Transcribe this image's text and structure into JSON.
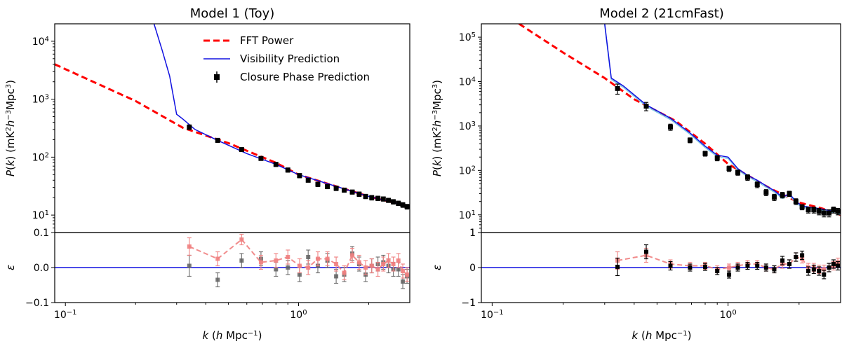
{
  "chart_data": [
    {
      "panel": "left",
      "title": "Model 1 (Toy)",
      "type": "line",
      "xscale": "log",
      "xlim": [
        0.09,
        3.0
      ],
      "xlabel": "k (h Mpc⁻¹)",
      "x_ticks": [
        {
          "v": 0.1,
          "b": "10",
          "e": "−1"
        },
        {
          "v": 1.0,
          "b": "10",
          "e": "0"
        }
      ],
      "top": {
        "ylabel": "P(k) (mK²h⁻³Mpc³)",
        "yscale": "log",
        "ylim": [
          5,
          20000
        ],
        "y_ticks": [
          {
            "v": 10,
            "b": "10",
            "e": "1"
          },
          {
            "v": 100,
            "b": "10",
            "e": "2"
          },
          {
            "v": 1000,
            "b": "10",
            "e": "3"
          },
          {
            "v": 10000,
            "b": "10",
            "e": "4"
          }
        ],
        "legend": {
          "placement": "upper-right",
          "entries": [
            "FFT Power",
            "Visibility Prediction",
            "Closure Phase Prediction"
          ]
        },
        "fft_power": {
          "x": [
            0.09,
            0.2,
            0.32,
            0.5,
            0.8,
            1.0,
            1.5,
            2.0,
            3.0
          ],
          "y": [
            4000,
            930,
            320,
            175,
            80,
            50,
            30,
            21,
            14
          ]
        },
        "visibility": {
          "x": [
            0.24,
            0.26,
            0.28,
            0.3,
            0.32,
            0.36,
            0.45,
            0.6,
            0.8,
            1.0,
            1.5,
            2.0,
            3.0
          ],
          "y": [
            20000,
            7000,
            2500,
            550,
            450,
            300,
            195,
            115,
            75,
            50,
            30,
            21,
            14
          ]
        },
        "closure": {
          "x": [
            0.34,
            0.45,
            0.57,
            0.69,
            0.8,
            0.9,
            1.01,
            1.1,
            1.21,
            1.33,
            1.45,
            1.57,
            1.7,
            1.82,
            1.94,
            2.06,
            2.19,
            2.31,
            2.43,
            2.55,
            2.68,
            2.8,
            2.92
          ],
          "y": [
            330,
            195,
            135,
            95,
            75,
            60,
            48,
            40,
            34,
            31,
            29,
            27,
            25,
            23,
            21,
            20,
            19.5,
            19,
            18,
            17,
            16,
            15,
            14
          ],
          "err": [
            30,
            15,
            10,
            7,
            6,
            5,
            4,
            3,
            3,
            2.5,
            2.5,
            2.2,
            2,
            2,
            1.8,
            1.8,
            1.7,
            1.6,
            1.5,
            1.5,
            1.4,
            1.4,
            1.3
          ]
        }
      },
      "bottom": {
        "ylabel": "ε",
        "ylim": [
          -0.1,
          0.1
        ],
        "y_ticks": [
          {
            "v": 0.1,
            "t": "0.1"
          },
          {
            "v": 0.0,
            "t": "0.0"
          },
          {
            "v": -0.1,
            "t": "−0.1"
          }
        ],
        "x": [
          0.34,
          0.45,
          0.57,
          0.69,
          0.8,
          0.9,
          1.01,
          1.1,
          1.21,
          1.33,
          1.45,
          1.57,
          1.7,
          1.82,
          1.94,
          2.06,
          2.19,
          2.31,
          2.43,
          2.55,
          2.68,
          2.8,
          2.92
        ],
        "black": [
          0.005,
          -0.035,
          0.02,
          0.025,
          -0.005,
          0.0,
          -0.02,
          0.03,
          0.005,
          0.02,
          -0.025,
          -0.02,
          0.04,
          0.01,
          -0.02,
          0.005,
          0.01,
          0.015,
          0.005,
          -0.005,
          -0.005,
          -0.04,
          -0.025
        ],
        "black_err": [
          0.03,
          0.02,
          0.02,
          0.02,
          0.02,
          0.02,
          0.02,
          0.02,
          0.02,
          0.02,
          0.02,
          0.02,
          0.02,
          0.02,
          0.02,
          0.02,
          0.02,
          0.02,
          0.02,
          0.02,
          0.02,
          0.02,
          0.02
        ],
        "red": [
          0.06,
          0.025,
          0.08,
          0.015,
          0.02,
          0.03,
          0.005,
          0.0,
          0.025,
          0.025,
          0.01,
          -0.015,
          0.035,
          0.015,
          0.0,
          0.005,
          -0.005,
          0.01,
          0.02,
          0.01,
          0.02,
          -0.01,
          -0.02
        ],
        "red_err": [
          0.025,
          0.02,
          0.015,
          0.02,
          0.02,
          0.02,
          0.02,
          0.02,
          0.02,
          0.02,
          0.02,
          0.02,
          0.02,
          0.02,
          0.02,
          0.02,
          0.02,
          0.02,
          0.02,
          0.02,
          0.02,
          0.02,
          0.02
        ]
      }
    },
    {
      "panel": "right",
      "title": "Model 2 (21cmFast)",
      "type": "line",
      "xscale": "log",
      "xlim": [
        0.09,
        3.0
      ],
      "xlabel": "k (h Mpc⁻¹)",
      "x_ticks": [
        {
          "v": 0.1,
          "b": "10",
          "e": "−1"
        },
        {
          "v": 1.0,
          "b": "10",
          "e": "0"
        }
      ],
      "top": {
        "ylabel": "P(k) (mK²h⁻³Mpc³)",
        "yscale": "log",
        "ylim": [
          4,
          200000
        ],
        "y_ticks": [
          {
            "v": 10,
            "b": "10",
            "e": "1"
          },
          {
            "v": 100,
            "b": "10",
            "e": "2"
          },
          {
            "v": 1000,
            "b": "10",
            "e": "3"
          },
          {
            "v": 10000,
            "b": "10",
            "e": "4"
          },
          {
            "v": 100000,
            "b": "10",
            "e": "5"
          }
        ],
        "fft_power": {
          "x": [
            0.13,
            0.2,
            0.3,
            0.4,
            0.6,
            0.8,
            1.0,
            1.5,
            2.0,
            2.5,
            3.0
          ],
          "y": [
            200000,
            45000,
            12000,
            4000,
            1300,
            400,
            140,
            40,
            19,
            14,
            10
          ]
        },
        "visibility": {
          "x": [
            0.3,
            0.32,
            0.36,
            0.45,
            0.57,
            0.69,
            0.8,
            0.9,
            1.0,
            1.1,
            1.2,
            1.33,
            1.45,
            1.57,
            1.7,
            1.82,
            1.94,
            2.06,
            2.2,
            2.4,
            2.6,
            2.8,
            3.0
          ],
          "y": [
            200000,
            12000,
            8000,
            3000,
            1500,
            700,
            350,
            220,
            200,
            110,
            80,
            60,
            45,
            35,
            25,
            30,
            20,
            16,
            15,
            14,
            13,
            12,
            11
          ]
        },
        "closure": {
          "x": [
            0.34,
            0.45,
            0.57,
            0.69,
            0.8,
            0.9,
            1.01,
            1.1,
            1.21,
            1.33,
            1.45,
            1.57,
            1.7,
            1.82,
            1.94,
            2.06,
            2.19,
            2.31,
            2.43,
            2.55,
            2.68,
            2.8,
            2.92
          ],
          "y": [
            7000,
            2800,
            950,
            480,
            240,
            190,
            110,
            90,
            70,
            48,
            32,
            25,
            28,
            30,
            20,
            15,
            13,
            13,
            12,
            11,
            11,
            13,
            12
          ],
          "err": [
            1800,
            600,
            150,
            60,
            30,
            25,
            15,
            12,
            10,
            7,
            5,
            4,
            4,
            4,
            3,
            2,
            2,
            2,
            2,
            2,
            2,
            2,
            2
          ]
        }
      },
      "bottom": {
        "ylabel": "ε",
        "ylim": [
          -1,
          1
        ],
        "y_ticks": [
          {
            "v": 1,
            "t": "1"
          },
          {
            "v": 0,
            "t": "0"
          },
          {
            "v": -1,
            "t": "−1"
          }
        ],
        "x": [
          0.34,
          0.45,
          0.57,
          0.69,
          0.8,
          0.9,
          1.01,
          1.1,
          1.21,
          1.33,
          1.45,
          1.57,
          1.7,
          1.82,
          1.94,
          2.06,
          2.19,
          2.31,
          2.43,
          2.55,
          2.68,
          2.8,
          2.92
        ],
        "black": [
          0.02,
          0.45,
          0.05,
          0.0,
          0.02,
          -0.1,
          -0.2,
          0.0,
          0.05,
          0.05,
          0.0,
          -0.05,
          0.2,
          0.1,
          0.3,
          0.35,
          -0.1,
          -0.05,
          -0.1,
          -0.2,
          0.0,
          0.1,
          0.05
        ],
        "black_err": [
          0.25,
          0.2,
          0.12,
          0.1,
          0.1,
          0.1,
          0.1,
          0.1,
          0.1,
          0.1,
          0.1,
          0.1,
          0.12,
          0.12,
          0.12,
          0.12,
          0.12,
          0.12,
          0.12,
          0.12,
          0.12,
          0.12,
          0.12
        ],
        "red": [
          0.2,
          0.35,
          0.1,
          0.05,
          0.05,
          -0.05,
          0.0,
          0.05,
          0.1,
          0.1,
          0.0,
          -0.05,
          0.1,
          0.1,
          0.3,
          0.25,
          0.0,
          0.0,
          -0.05,
          -0.05,
          0.0,
          0.05,
          0.15
        ],
        "red_err": [
          0.25,
          0.2,
          0.12,
          0.1,
          0.1,
          0.1,
          0.1,
          0.1,
          0.1,
          0.1,
          0.1,
          0.1,
          0.12,
          0.12,
          0.12,
          0.12,
          0.12,
          0.12,
          0.12,
          0.12,
          0.12,
          0.12,
          0.12
        ]
      }
    }
  ],
  "colors": {
    "fft": "#ff0000",
    "visibility": "#1010e0",
    "visibility_light": "#7ec8e3",
    "closure": "#000000",
    "residual_red": "#f08080",
    "residual_black": "#606060"
  }
}
